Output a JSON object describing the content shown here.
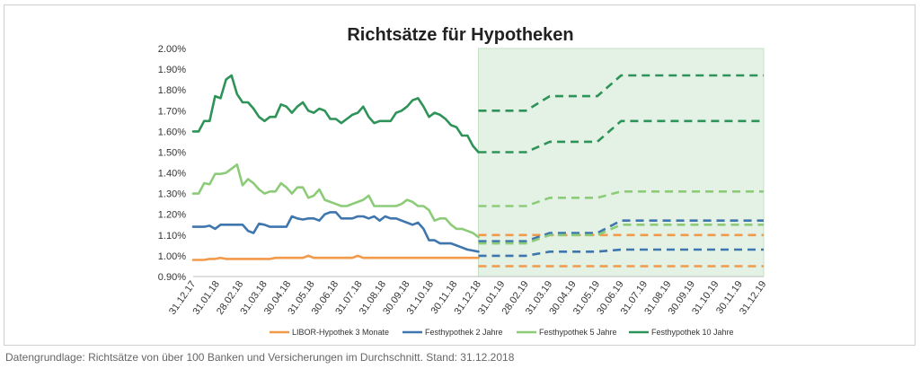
{
  "title": "Richtsätze für Hypotheken",
  "footnote": "Datengrundlage: Richtsätze von über 100 Banken und Versicherungen im Durchschnitt. Stand: 31.12.2018",
  "colors": {
    "forecast_background": "#e3f2e4",
    "forecast_border": "#c5e2c7"
  },
  "chart_data": {
    "type": "line",
    "title": "Richtsätze für Hypotheken",
    "xlabel": "",
    "ylabel": "",
    "ylim": [
      0.9,
      2.0
    ],
    "y_ticks": [
      "0.90%",
      "1.00%",
      "1.10%",
      "1.20%",
      "1.30%",
      "1.40%",
      "1.50%",
      "1.60%",
      "1.70%",
      "1.80%",
      "1.90%",
      "2.00%"
    ],
    "x_ticks": [
      "31.12.17",
      "31.01.18",
      "28.02.18",
      "31.03.18",
      "30.04.18",
      "31.05.18",
      "30.06.18",
      "31.07.18",
      "31.08.18",
      "30.09.18",
      "31.10.18",
      "30.11.18",
      "31.12.18",
      "31.01.19",
      "28.02.19",
      "31.03.19",
      "30.04.19",
      "31.05.19",
      "30.06.19",
      "31.07.19",
      "31.08.19",
      "30.09.19",
      "31.10.19",
      "30.11.19",
      "31.12.19"
    ],
    "grid": false,
    "legend_position": "bottom",
    "forecast_region": [
      "31.12.18",
      "31.12.19"
    ],
    "series": [
      {
        "name": "LIBOR-Hypothek 3 Monate",
        "color": "#f29a4a",
        "history": [
          0.98,
          0.98,
          0.98,
          0.985,
          0.985,
          0.99,
          0.985,
          0.985,
          0.985,
          0.985,
          0.985,
          0.985,
          0.985,
          0.985,
          0.985,
          0.99,
          0.99,
          0.99,
          0.99,
          0.99,
          0.99,
          1.0,
          0.99,
          0.99,
          0.99,
          0.99,
          0.99,
          0.99,
          0.99,
          0.99,
          1.0,
          0.99,
          0.99,
          0.99,
          0.99,
          0.99,
          0.99,
          0.99,
          0.99,
          0.99,
          0.99,
          0.99,
          0.99,
          0.99,
          0.99,
          0.99,
          0.99,
          0.99,
          0.99,
          0.99,
          0.99,
          0.99,
          0.99
        ],
        "forecast": [
          {
            "name": "high",
            "values": [
              1.1,
              1.1,
              1.1,
              1.1,
              1.1,
              1.1,
              1.1,
              1.1,
              1.1,
              1.1,
              1.1,
              1.1,
              1.1
            ]
          },
          {
            "name": "low",
            "values": [
              0.95,
              0.95,
              0.95,
              0.95,
              0.95,
              0.95,
              0.95,
              0.95,
              0.95,
              0.95,
              0.95,
              0.95,
              0.95
            ]
          }
        ]
      },
      {
        "name": "Festhypothek 2 Jahre",
        "color": "#3e76ad",
        "history": [
          1.14,
          1.14,
          1.14,
          1.145,
          1.13,
          1.15,
          1.15,
          1.15,
          1.15,
          1.15,
          1.12,
          1.11,
          1.155,
          1.15,
          1.14,
          1.14,
          1.14,
          1.14,
          1.19,
          1.18,
          1.175,
          1.18,
          1.18,
          1.17,
          1.2,
          1.21,
          1.21,
          1.18,
          1.18,
          1.18,
          1.19,
          1.19,
          1.18,
          1.19,
          1.17,
          1.19,
          1.18,
          1.18,
          1.17,
          1.16,
          1.15,
          1.16,
          1.13,
          1.075,
          1.075,
          1.06,
          1.06,
          1.06,
          1.05,
          1.04,
          1.03,
          1.025,
          1.02
        ],
        "forecast": [
          {
            "name": "high",
            "values": [
              1.07,
              1.07,
              1.07,
              1.11,
              1.11,
              1.11,
              1.17,
              1.17,
              1.17,
              1.17,
              1.17,
              1.17,
              1.17
            ]
          },
          {
            "name": "low",
            "values": [
              1.0,
              1.0,
              1.0,
              1.02,
              1.02,
              1.02,
              1.03,
              1.03,
              1.03,
              1.03,
              1.03,
              1.03,
              1.03
            ]
          }
        ]
      },
      {
        "name": "Festhypothek 5 Jahre",
        "color": "#8ccc79",
        "history": [
          1.3,
          1.3,
          1.35,
          1.345,
          1.395,
          1.395,
          1.4,
          1.42,
          1.44,
          1.34,
          1.37,
          1.35,
          1.32,
          1.3,
          1.31,
          1.31,
          1.35,
          1.33,
          1.3,
          1.33,
          1.33,
          1.28,
          1.29,
          1.32,
          1.27,
          1.26,
          1.25,
          1.24,
          1.24,
          1.25,
          1.26,
          1.27,
          1.29,
          1.24,
          1.24,
          1.24,
          1.24,
          1.24,
          1.25,
          1.27,
          1.26,
          1.24,
          1.24,
          1.22,
          1.17,
          1.18,
          1.18,
          1.15,
          1.13,
          1.13,
          1.12,
          1.11,
          1.09
        ],
        "forecast": [
          {
            "name": "high",
            "values": [
              1.24,
              1.24,
              1.24,
              1.28,
              1.28,
              1.28,
              1.31,
              1.31,
              1.31,
              1.31,
              1.31,
              1.31,
              1.31
            ]
          },
          {
            "name": "low",
            "values": [
              1.06,
              1.06,
              1.06,
              1.1,
              1.1,
              1.1,
              1.15,
              1.15,
              1.15,
              1.15,
              1.15,
              1.15,
              1.15
            ]
          }
        ]
      },
      {
        "name": "Festhypothek 10 Jahre",
        "color": "#2e9358",
        "history": [
          1.6,
          1.6,
          1.65,
          1.65,
          1.77,
          1.76,
          1.85,
          1.87,
          1.78,
          1.74,
          1.74,
          1.71,
          1.67,
          1.65,
          1.67,
          1.67,
          1.73,
          1.72,
          1.69,
          1.72,
          1.74,
          1.7,
          1.69,
          1.71,
          1.7,
          1.66,
          1.66,
          1.64,
          1.66,
          1.68,
          1.69,
          1.72,
          1.67,
          1.64,
          1.65,
          1.65,
          1.65,
          1.69,
          1.7,
          1.72,
          1.75,
          1.76,
          1.72,
          1.67,
          1.69,
          1.68,
          1.66,
          1.63,
          1.62,
          1.58,
          1.58,
          1.53,
          1.5
        ],
        "forecast": [
          {
            "name": "high",
            "values": [
              1.7,
              1.7,
              1.7,
              1.77,
              1.77,
              1.77,
              1.87,
              1.87,
              1.87,
              1.87,
              1.87,
              1.87,
              1.87
            ]
          },
          {
            "name": "low",
            "values": [
              1.5,
              1.5,
              1.5,
              1.55,
              1.55,
              1.55,
              1.65,
              1.65,
              1.65,
              1.65,
              1.65,
              1.65,
              1.65
            ]
          }
        ]
      }
    ]
  }
}
